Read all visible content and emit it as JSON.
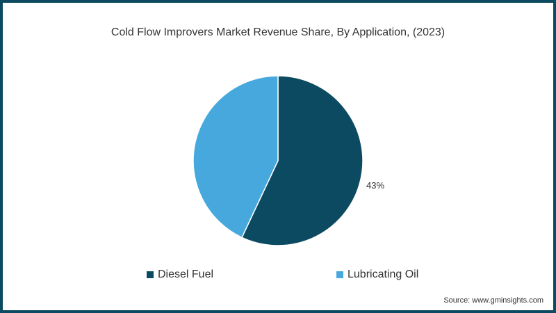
{
  "title": "Cold Flow Improvers Market Revenue Share, By Application, (2023)",
  "source": "Source: www.gminsights.com",
  "chart_data": {
    "type": "pie",
    "title": "Cold Flow Improvers Market Revenue Share, By Application, (2023)",
    "categories": [
      "Diesel Fuel",
      "Lubricating Oil"
    ],
    "values": [
      57,
      43
    ],
    "colors": [
      "#0b4a60",
      "#46a8dc"
    ],
    "data_labels": [
      {
        "text": "43%",
        "position": "right of pie"
      }
    ],
    "legend_position": "bottom"
  },
  "legend": [
    {
      "label": "Diesel Fuel",
      "color": "#0b4a60"
    },
    {
      "label": "Lubricating Oil",
      "color": "#46a8dc"
    }
  ],
  "labels": {
    "pct": "43%"
  }
}
